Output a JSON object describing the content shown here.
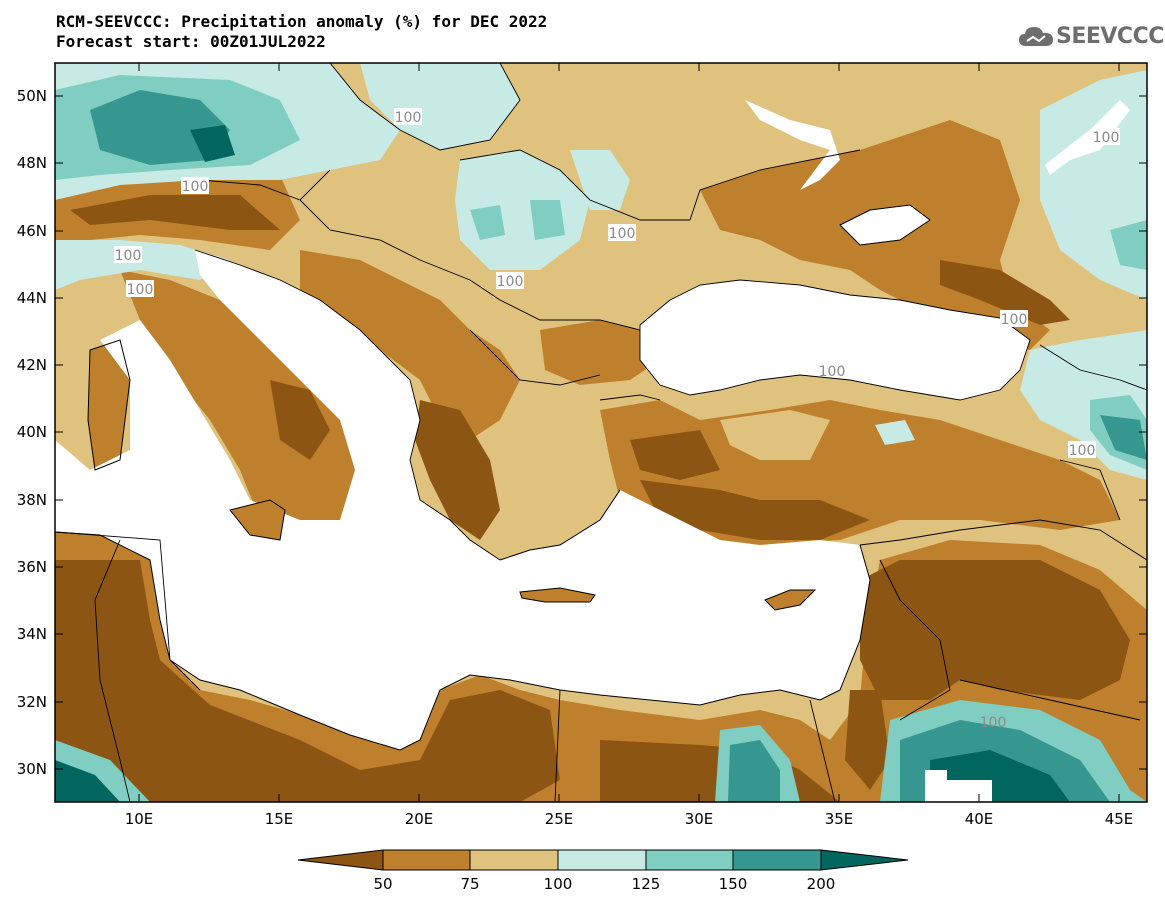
{
  "title": {
    "line1": "RCM-SEEVCCC: Precipitation anomaly (%) for DEC 2022",
    "line2": "Forecast start: 00Z01JUL2022"
  },
  "logo": {
    "text": "SEEVCCC",
    "icon": "cloud-icon",
    "color": "#6e6e6e"
  },
  "map": {
    "lon_range": [
      7,
      46
    ],
    "lat_range": [
      29,
      51
    ],
    "lon_ticks": [
      "10E",
      "15E",
      "20E",
      "25E",
      "30E",
      "35E",
      "40E",
      "45E"
    ],
    "lat_ticks": [
      "50N",
      "48N",
      "46N",
      "44N",
      "42N",
      "40N",
      "38N",
      "36N",
      "34N",
      "32N",
      "30N"
    ],
    "contour_labels": [
      "100",
      "100",
      "100",
      "100",
      "100",
      "100",
      "100",
      "100",
      "100",
      "100"
    ]
  },
  "legend": {
    "levels": [
      "50",
      "75",
      "100",
      "125",
      "150",
      "200"
    ],
    "colors": [
      "#8c5514",
      "#bf802d",
      "#dfc27d",
      "#c7eae5",
      "#80cdc1",
      "#35978f",
      "#01665e"
    ]
  }
}
